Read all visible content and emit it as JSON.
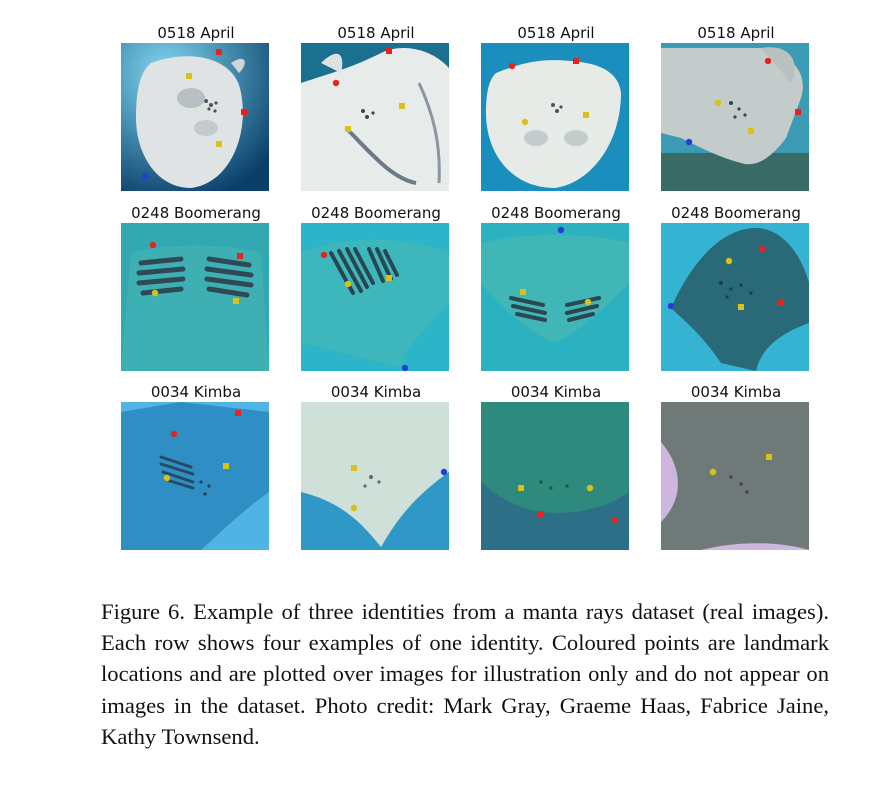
{
  "figure": {
    "labels": [
      "0518 April",
      "0518 April",
      "0518 April",
      "0518 April",
      "0248 Boomerang",
      "0248 Boomerang",
      "0248 Boomerang",
      "0248 Boomerang",
      "0034 Kimba",
      "0034 Kimba",
      "0034 Kimba",
      "0034 Kimba"
    ],
    "landmark_colors": {
      "red": "#e8231c",
      "yellow": "#d8c21a",
      "blue": "#1f3fd6"
    },
    "caption": "Figure 6. Example of three identities from a manta rays dataset (real images). Each row shows four examples of one identity. Coloured points are landmark locations and are plotted over images for illustration only and do not appear on images in the dataset. Photo credit: Mark Gray, Graeme Haas, Fabrice Jaine, Kathy Townsend."
  }
}
